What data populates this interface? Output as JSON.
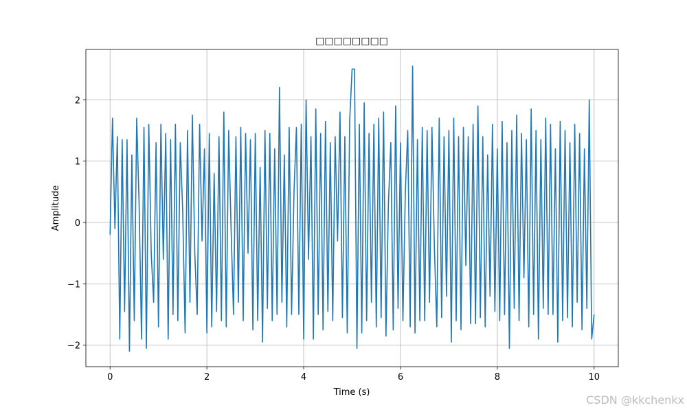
{
  "chart_data": {
    "type": "line",
    "title": "□□□□□□□□",
    "xlabel": "Time (s)",
    "ylabel": "Amplitude",
    "watermark": "CSDN @kkchenkx",
    "xlim": [
      -0.5,
      10.5
    ],
    "ylim": [
      -2.35,
      2.82
    ],
    "xticks": [
      0,
      2,
      4,
      6,
      8,
      10
    ],
    "yticks": [
      {
        "value": -2,
        "label": "−2"
      },
      {
        "value": -1,
        "label": "−1"
      },
      0,
      1,
      2
    ],
    "grid": true,
    "series": [
      {
        "color": "#1f77b4",
        "x": [
          0,
          0.05,
          0.1,
          0.15,
          0.2,
          0.25,
          0.3,
          0.35,
          0.4,
          0.45,
          0.5,
          0.55,
          0.6,
          0.65,
          0.7,
          0.75,
          0.8,
          0.85,
          0.9,
          0.95,
          1,
          1.05,
          1.1,
          1.15,
          1.2,
          1.25,
          1.3,
          1.35,
          1.4,
          1.45,
          1.5,
          1.55,
          1.6,
          1.65,
          1.7,
          1.75,
          1.8,
          1.85,
          1.9,
          1.95,
          2,
          2.05,
          2.1,
          2.15,
          2.2,
          2.25,
          2.3,
          2.35,
          2.4,
          2.45,
          2.5,
          2.55,
          2.6,
          2.65,
          2.7,
          2.75,
          2.8,
          2.85,
          2.9,
          2.95,
          3,
          3.05,
          3.1,
          3.15,
          3.2,
          3.25,
          3.3,
          3.35,
          3.4,
          3.45,
          3.5,
          3.55,
          3.6,
          3.65,
          3.7,
          3.75,
          3.8,
          3.85,
          3.9,
          3.95,
          4,
          4.05,
          4.1,
          4.15,
          4.2,
          4.25,
          4.3,
          4.35,
          4.4,
          4.45,
          4.5,
          4.55,
          4.6,
          4.65,
          4.7,
          4.75,
          4.8,
          4.85,
          4.9,
          4.95,
          5,
          5.05,
          5.1,
          5.15,
          5.2,
          5.25,
          5.3,
          5.35,
          5.4,
          5.45,
          5.5,
          5.55,
          5.6,
          5.65,
          5.7,
          5.75,
          5.8,
          5.85,
          5.9,
          5.95,
          6,
          6.05,
          6.1,
          6.15,
          6.2,
          6.25,
          6.3,
          6.35,
          6.4,
          6.45,
          6.5,
          6.55,
          6.6,
          6.65,
          6.7,
          6.75,
          6.8,
          6.85,
          6.9,
          6.95,
          7,
          7.05,
          7.1,
          7.15,
          7.2,
          7.25,
          7.3,
          7.35,
          7.4,
          7.45,
          7.5,
          7.55,
          7.6,
          7.65,
          7.7,
          7.75,
          7.8,
          7.85,
          7.9,
          7.95,
          8,
          8.05,
          8.1,
          8.15,
          8.2,
          8.25,
          8.3,
          8.35,
          8.4,
          8.45,
          8.5,
          8.55,
          8.6,
          8.65,
          8.7,
          8.75,
          8.8,
          8.85,
          8.9,
          8.95,
          9,
          9.05,
          9.1,
          9.15,
          9.2,
          9.25,
          9.3,
          9.35,
          9.4,
          9.45,
          9.5,
          9.55,
          9.6,
          9.65,
          9.7,
          9.75,
          9.8,
          9.85,
          9.9,
          9.95,
          10
        ],
        "values": [
          -0.2,
          1.7,
          -0.1,
          1.4,
          -1.9,
          1.35,
          -1.45,
          1.35,
          -2.1,
          1.1,
          -1.6,
          1.7,
          0.3,
          -1.9,
          1.55,
          -2.05,
          1.6,
          -0.5,
          -1.3,
          1.3,
          -1.7,
          1.6,
          -0.6,
          1.45,
          -1.9,
          1.35,
          -1.5,
          1.6,
          -1.6,
          1.3,
          0.2,
          -1.8,
          1.5,
          -1.3,
          1.75,
          -0.5,
          -1.5,
          1.6,
          -0.3,
          1.2,
          -1.8,
          1.45,
          -1.7,
          0.8,
          -1.45,
          1.4,
          -1.6,
          1.8,
          -1.7,
          1.5,
          -0.1,
          -1.5,
          1.4,
          -1.3,
          1.55,
          -1.6,
          1.45,
          -0.5,
          1.35,
          -1.75,
          1.45,
          -1.6,
          0.9,
          -1.95,
          1.5,
          -1.4,
          1.45,
          -1.6,
          1.2,
          -1.5,
          2.2,
          -1.3,
          1.1,
          -1.7,
          1.55,
          -1.5,
          0.5,
          1.55,
          -1.5,
          1.6,
          -1.9,
          2.0,
          -0.6,
          1.4,
          -1.9,
          1.85,
          -1.5,
          1.45,
          -1.75,
          1.65,
          -1.45,
          1.3,
          -1.6,
          1.4,
          -0.3,
          1.8,
          -1.55,
          1.4,
          -1.8,
          1.65,
          2.5,
          2.5,
          -2.05,
          1.6,
          -1.8,
          1.95,
          -1.6,
          1.45,
          -1.3,
          1.6,
          -1.7,
          1.7,
          -1.55,
          1.8,
          -1.85,
          0.3,
          1.3,
          -1.75,
          1.9,
          -1.4,
          1.3,
          -1.6,
          0.5,
          1.5,
          -1.7,
          2.55,
          -1.8,
          1.35,
          -1.6,
          1.55,
          -1.6,
          1.5,
          -1.3,
          1.55,
          -0.4,
          -1.7,
          1.7,
          -1.55,
          1.4,
          -1.2,
          1.5,
          -1.95,
          1.7,
          -1.6,
          1.4,
          -1.75,
          1.55,
          -0.7,
          1.4,
          -1.65,
          1.6,
          -1.65,
          1.9,
          -1.55,
          1.4,
          -1.7,
          1.1,
          -1.2,
          1.6,
          -1.45,
          1.2,
          -1.6,
          1.65,
          -1.5,
          1.3,
          -2.05,
          1.5,
          -1.4,
          1.75,
          -1.6,
          1.45,
          -0.9,
          1.35,
          -1.7,
          1.85,
          -1.5,
          1.5,
          -1.9,
          1.35,
          -1.4,
          1.7,
          -1.5,
          1.6,
          -1.5,
          1.2,
          -1.95,
          1.65,
          -1.6,
          1.5,
          -1.55,
          1.3,
          -1.7,
          1.6,
          -1.3,
          1.45,
          -1.75,
          1.2,
          -1.4,
          2.0,
          -1.9,
          -1.5
        ]
      }
    ]
  }
}
